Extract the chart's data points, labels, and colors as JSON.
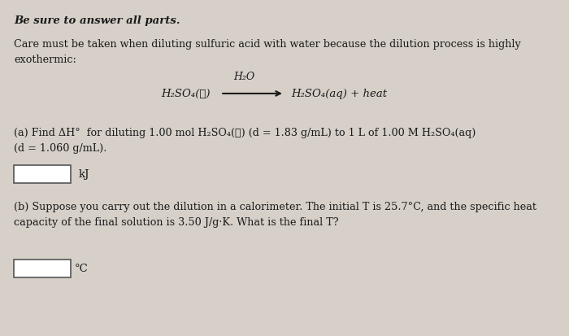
{
  "bg_color": "#d6d0c8",
  "title_text": "Be sure to answer all parts.",
  "intro_text": "Care must be taken when diluting sulfuric acid with water because the dilution process is highly\nexothermic:",
  "equation_above": "H₂O",
  "equation_left": "H₂SO₄(ℓ)",
  "equation_right": "H₂SO₄(aq) + heat",
  "part_a_text": "(a) Find ΔH°  for diluting 1.00 mol H₂SO₄(ℓ) (d = 1.83 g/mL) to 1 L of 1.00 M H₂SO₄(aq)\n(d = 1.060 g/mL).",
  "unit_a": "kJ",
  "part_b_text": "(b) Suppose you carry out the dilution in a calorimeter. The initial T is 25.7°C, and the specific heat\ncapacity of the final solution is 3.50 J/g·K. What is the final T?",
  "unit_b": "°C",
  "box_color": "#ffffff",
  "text_color": "#1a1a1a"
}
